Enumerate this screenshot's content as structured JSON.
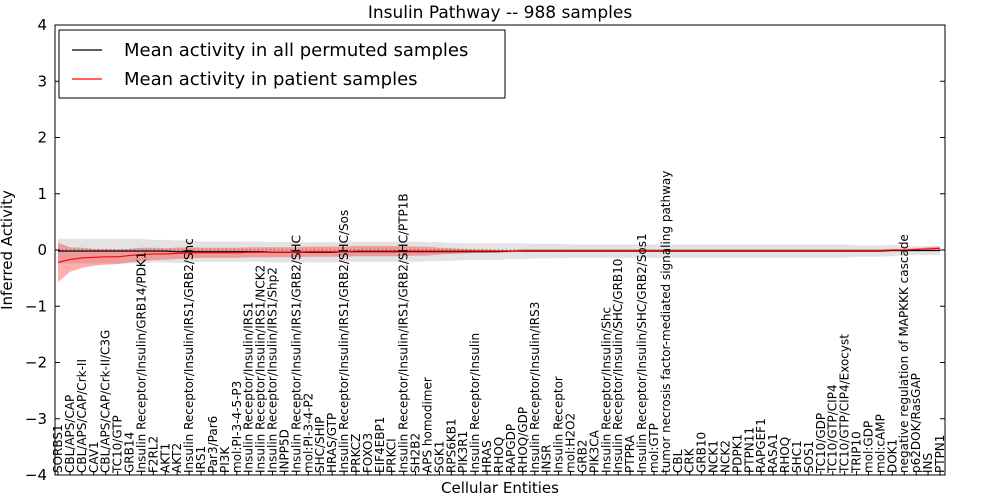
{
  "chart_data": {
    "type": "line",
    "title": "Insulin Pathway -- 988 samples",
    "xlabel": "Cellular Entities",
    "ylabel": "Inferred Activity",
    "ylim": [
      -4,
      4
    ],
    "yticks": [
      -4,
      -3,
      -2,
      -1,
      0,
      1,
      2,
      3,
      4
    ],
    "grid": false,
    "legend_position": "top-left",
    "categories": [
      "SORBS1",
      "CBL/APS/CAP",
      "CBL/APS/CAP/Crk-II",
      "CAV1",
      "CBL/APS/CAP/Crk-II/C3G",
      "TC10/GTP",
      "GRB14",
      "Insulin Receptor/Insulin/GRB14/PDK1",
      "F2RL2",
      "AKT1",
      "AKT2",
      "Insulin Receptor/Insulin/IRS1/GRB2/Shc",
      "IRS1",
      "Par3/Par6",
      "PI3K",
      "mol:PI-3-4-5-P3",
      "Insulin Receptor/Insulin/IRS1",
      "Insulin Receptor/Insulin/IRS1/NCK2",
      "Insulin Receptor/Insulin/IRS1/Shp2",
      "INPP5D",
      "Insulin Receptor/Insulin/IRS1/GRB2/SHC",
      "mol:PI-3-4-P2",
      "SHC/SHIP",
      "HRAS/GTP",
      "Insulin Receptor/Insulin/IRS1/GRB2/SHC/Sos",
      "PRKCZ",
      "FOXO3",
      "EIF4EBP1",
      "PRKCI",
      "Insulin Receptor/Insulin/IRS1/GRB2/SHC/PTP1B",
      "SH2B2",
      "APS homodimer",
      "SGK1",
      "RPS6KB1",
      "PIK3R1",
      "Insulin Receptor/Insulin",
      "HRAS",
      "RHOQ",
      "RAPGDP",
      "RHOQ/GDP",
      "Insulin Receptor/Insulin/IRS3",
      "INSR",
      "Insulin Receptor",
      "mol:H2O2",
      "GRB2",
      "PIK3CA",
      "Insulin Receptor/Insulin/Shc",
      "Insulin Receptor/Insulin/SHC/GRB10",
      "PTPRA",
      "Insulin Receptor/Insulin/SHC/GRB2/Sos1",
      "mol:GTP",
      "tumor necrosis factor-mediated signaling pathway",
      "CBL",
      "CRK",
      "GRB10",
      "NCK1",
      "NCK2",
      "PDPK1",
      "PTPN11",
      "RAPGEF1",
      "RASA1",
      "RHOQ",
      "SHC1",
      "SOS1",
      "TC10/GDP",
      "TC10/GTP/CIP4",
      "TC10/GTP/CIP4/Exocyst",
      "TRIP10",
      "mol:GDP",
      "mol:cAMP",
      "DOK1",
      "negative regulation of MAPKKK cascade",
      "p62DOK/RasGAP",
      "INS",
      "PTPN1"
    ],
    "series": [
      {
        "name": "Mean activity in all permuted samples",
        "color": "#000000",
        "values": [
          -0.02,
          -0.02,
          -0.02,
          -0.02,
          -0.02,
          -0.02,
          -0.02,
          -0.02,
          -0.02,
          -0.02,
          -0.03,
          -0.03,
          -0.03,
          -0.03,
          -0.03,
          -0.03,
          -0.03,
          -0.03,
          -0.04,
          -0.04,
          -0.04,
          -0.04,
          -0.04,
          -0.04,
          -0.03,
          -0.03,
          -0.03,
          -0.03,
          -0.03,
          -0.03,
          -0.03,
          -0.03,
          -0.03,
          -0.03,
          -0.03,
          -0.03,
          -0.03,
          -0.03,
          -0.02,
          -0.02,
          -0.02,
          -0.02,
          -0.02,
          -0.02,
          -0.02,
          -0.02,
          -0.02,
          -0.02,
          -0.02,
          -0.02,
          -0.02,
          -0.02,
          -0.02,
          -0.02,
          -0.02,
          -0.02,
          -0.02,
          -0.02,
          -0.02,
          -0.02,
          -0.02,
          -0.02,
          -0.02,
          -0.02,
          -0.02,
          -0.02,
          -0.02,
          -0.02,
          -0.02,
          -0.02,
          -0.01,
          -0.01,
          -0.01,
          -0.01,
          -0.01
        ],
        "band": [
          0.22,
          0.22,
          0.22,
          0.22,
          0.22,
          0.22,
          0.22,
          0.22,
          0.2,
          0.2,
          0.2,
          0.2,
          0.18,
          0.18,
          0.18,
          0.18,
          0.18,
          0.18,
          0.18,
          0.18,
          0.18,
          0.18,
          0.18,
          0.18,
          0.18,
          0.18,
          0.18,
          0.18,
          0.18,
          0.18,
          0.18,
          0.17,
          0.17,
          0.16,
          0.15,
          0.15,
          0.15,
          0.15,
          0.14,
          0.14,
          0.13,
          0.13,
          0.13,
          0.12,
          0.12,
          0.12,
          0.12,
          0.12,
          0.12,
          0.12,
          0.12,
          0.12,
          0.12,
          0.12,
          0.12,
          0.12,
          0.12,
          0.12,
          0.12,
          0.12,
          0.12,
          0.12,
          0.12,
          0.12,
          0.12,
          0.12,
          0.12,
          0.1,
          0.1,
          0.1,
          0.1,
          0.08,
          0.08,
          0.08,
          0.08
        ]
      },
      {
        "name": "Mean activity in patient samples",
        "color": "#ff0000",
        "values": [
          -0.22,
          -0.17,
          -0.14,
          -0.13,
          -0.12,
          -0.12,
          -0.1,
          -0.08,
          -0.07,
          -0.07,
          -0.06,
          -0.05,
          -0.05,
          -0.05,
          -0.05,
          -0.05,
          -0.04,
          -0.04,
          -0.04,
          -0.04,
          -0.04,
          -0.03,
          -0.03,
          -0.03,
          -0.03,
          -0.02,
          -0.02,
          -0.02,
          -0.02,
          -0.02,
          -0.02,
          -0.02,
          -0.02,
          -0.02,
          -0.02,
          -0.02,
          -0.02,
          -0.02,
          -0.02,
          -0.01,
          -0.01,
          -0.01,
          -0.01,
          -0.01,
          -0.01,
          -0.01,
          -0.01,
          -0.01,
          -0.01,
          -0.01,
          -0.01,
          -0.01,
          -0.01,
          -0.01,
          -0.01,
          -0.01,
          -0.01,
          -0.01,
          -0.01,
          -0.01,
          -0.01,
          -0.01,
          -0.01,
          -0.01,
          -0.01,
          -0.01,
          -0.01,
          -0.01,
          -0.01,
          -0.01,
          0.0,
          0.0,
          0.01,
          0.02,
          0.03
        ],
        "band": [
          0.35,
          0.22,
          0.18,
          0.15,
          0.14,
          0.13,
          0.12,
          0.12,
          0.11,
          0.1,
          0.1,
          0.1,
          0.09,
          0.09,
          0.09,
          0.09,
          0.09,
          0.09,
          0.09,
          0.09,
          0.09,
          0.09,
          0.09,
          0.09,
          0.09,
          0.09,
          0.09,
          0.09,
          0.09,
          0.09,
          0.08,
          0.08,
          0.06,
          0.05,
          0.04,
          0.03,
          0.03,
          0.02,
          0.02,
          0.02,
          0.02,
          0.02,
          0.02,
          0.02,
          0.02,
          0.02,
          0.02,
          0.02,
          0.02,
          0.02,
          0.02,
          0.02,
          0.02,
          0.02,
          0.02,
          0.02,
          0.02,
          0.02,
          0.02,
          0.02,
          0.02,
          0.02,
          0.02,
          0.02,
          0.02,
          0.02,
          0.02,
          0.02,
          0.02,
          0.02,
          0.02,
          0.02,
          0.02,
          0.03,
          0.03
        ]
      }
    ]
  }
}
